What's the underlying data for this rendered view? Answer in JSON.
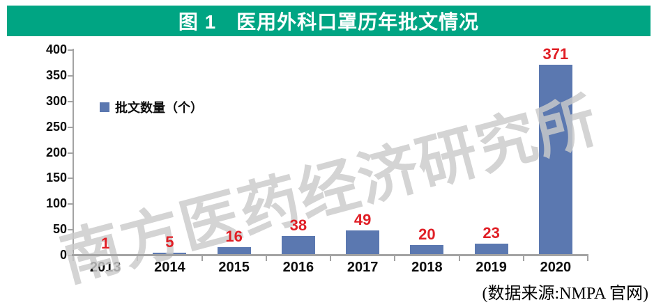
{
  "header": {
    "title": "图 1　医用外科口罩历年批文情况",
    "bg_color": "#00A583",
    "text_color": "#FFFFFF"
  },
  "legend": {
    "label": "批文数量（个）",
    "swatch_color": "#5B78B0"
  },
  "chart_data": {
    "type": "bar",
    "title": "图 1 医用外科口罩历年批文情况",
    "categories": [
      "2013",
      "2014",
      "2015",
      "2016",
      "2017",
      "2018",
      "2019",
      "2020"
    ],
    "values": [
      1,
      5,
      16,
      38,
      49,
      20,
      23,
      371
    ],
    "series_name": "批文数量（个）",
    "xlabel": "",
    "ylabel": "",
    "ylim": [
      0,
      400
    ],
    "yticks": [
      0,
      50,
      100,
      150,
      200,
      250,
      300,
      350,
      400
    ],
    "grid": false,
    "legend_position": "inside-top-left",
    "bar_color": "#5B78B0",
    "value_label_color": "#E01F26",
    "axis_color": "#A3A3A3"
  },
  "watermark": {
    "text": "南方医药经济研究所",
    "color": "#CBCBCB"
  },
  "source_note": {
    "text": "(数据来源:NMPA 官网)"
  }
}
